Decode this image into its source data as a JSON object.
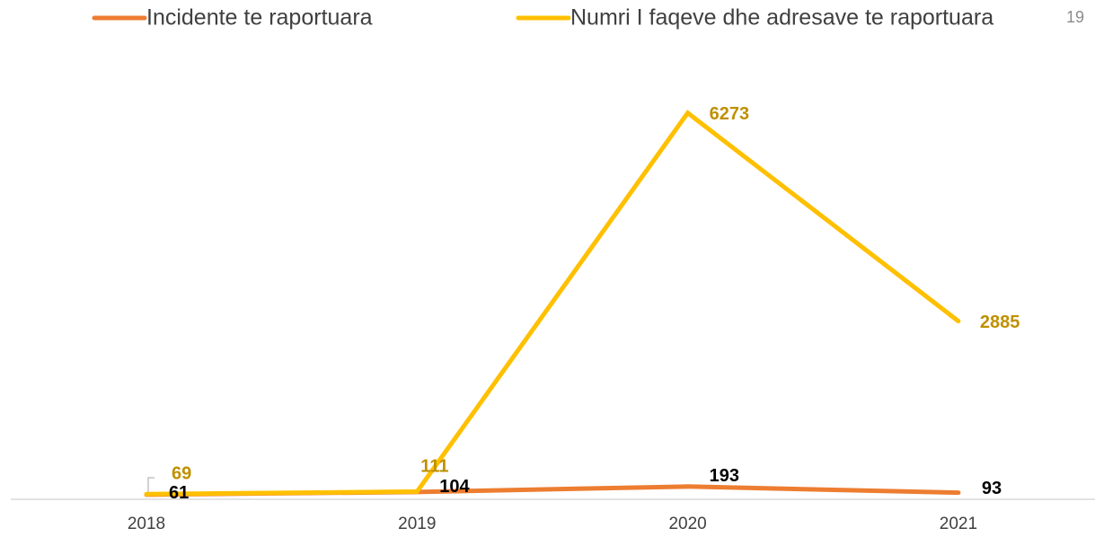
{
  "page_number": "19",
  "chart_data": {
    "type": "line",
    "categories": [
      "2018",
      "2019",
      "2020",
      "2021"
    ],
    "series": [
      {
        "name": "Incidente te raportuara",
        "color": "#ed7d31",
        "label_color": "#000000",
        "values": [
          61,
          104,
          193,
          93
        ]
      },
      {
        "name": "Numri I faqeve dhe adresave te raportuara",
        "color": "#ffc000",
        "label_color": "#bf9000",
        "values": [
          69,
          111,
          6273,
          2885
        ]
      }
    ],
    "ylim": [
      0,
      7000
    ],
    "legend": "top"
  }
}
